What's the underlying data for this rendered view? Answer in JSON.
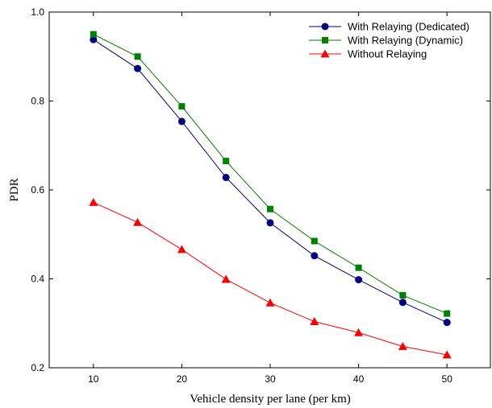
{
  "chart_data": {
    "type": "line",
    "title": "",
    "xlabel": "Vehicle density per lane (per km)",
    "ylabel": "PDR",
    "xlim": [
      5,
      55
    ],
    "ylim": [
      0.2,
      1.0
    ],
    "x_ticks": [
      10,
      20,
      30,
      40,
      50
    ],
    "x_tick_labels": [
      "10",
      "20",
      "30",
      "40",
      "50"
    ],
    "y_ticks": [
      0.2,
      0.4,
      0.6,
      0.8,
      1.0
    ],
    "y_tick_labels": [
      "0.2",
      "0.4",
      "0.6",
      "0.8",
      "1.0"
    ],
    "grid": false,
    "legend_position": "top-right",
    "x": [
      10,
      15,
      20,
      25,
      30,
      35,
      40,
      45,
      50
    ],
    "series": [
      {
        "name": "With Relaying (Dedicated)",
        "color": "#000080",
        "marker": "circle",
        "values": [
          0.938,
          0.873,
          0.754,
          0.628,
          0.526,
          0.452,
          0.398,
          0.347,
          0.302
        ]
      },
      {
        "name": "With Relaying (Dynamic)",
        "color": "#008000",
        "marker": "square",
        "values": [
          0.95,
          0.9,
          0.788,
          0.665,
          0.557,
          0.485,
          0.425,
          0.363,
          0.322
        ]
      },
      {
        "name": "Without Relaying",
        "color": "#ff0000",
        "marker": "triangle",
        "values": [
          0.572,
          0.527,
          0.466,
          0.399,
          0.346,
          0.304,
          0.279,
          0.248,
          0.229
        ]
      }
    ]
  }
}
